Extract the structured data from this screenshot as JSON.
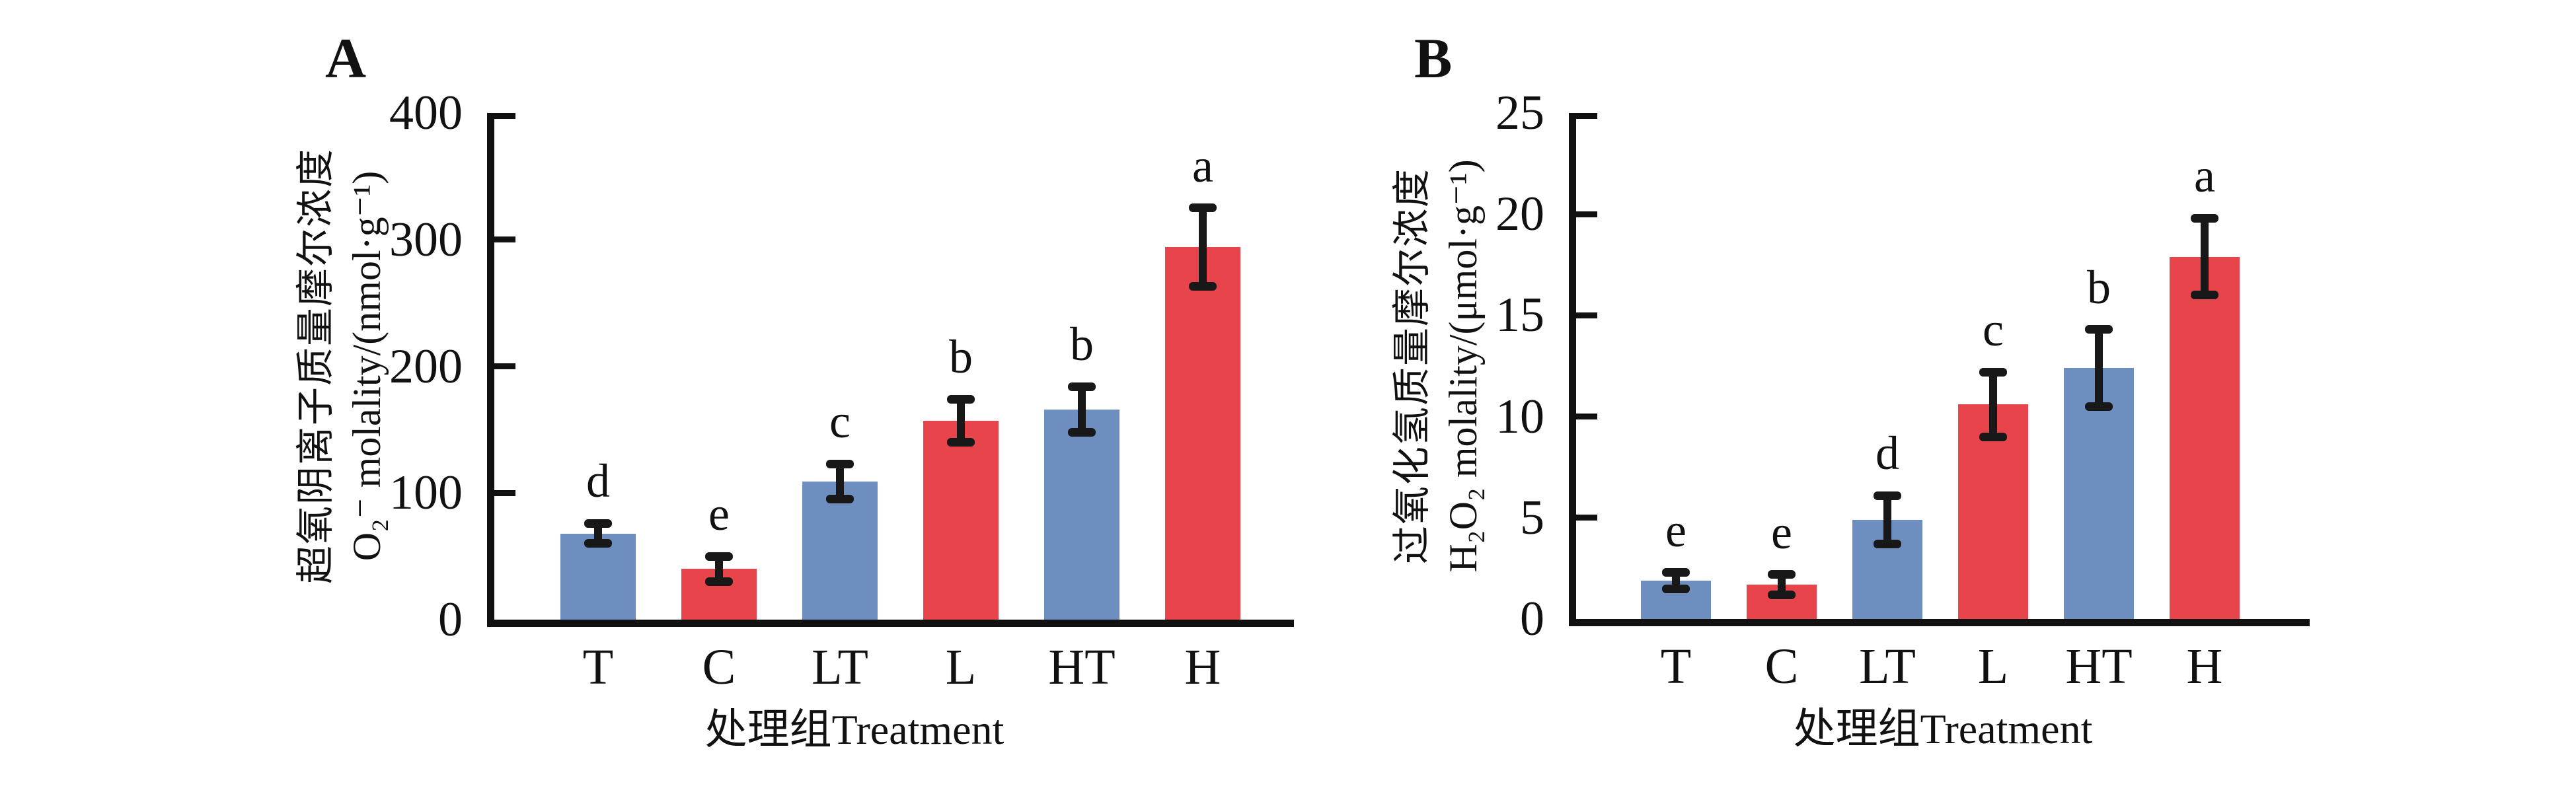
{
  "figure": {
    "background": "#ffffff",
    "axis_color": "#111111",
    "error_bar_color": "#181818",
    "bar_palette": {
      "blue": "#6E8EC0",
      "red": "#E8444B"
    },
    "panels": [
      {
        "label": "A",
        "y_label_cn": "超氧阴离子质量摩尔浓度",
        "y_label_en": "O₂⁻ molality/(nmol·g⁻¹)",
        "x_label": "处理组Treatment"
      },
      {
        "label": "B",
        "y_label_cn": "过氧化氢质量摩尔浓度",
        "y_label_en": "H₂O₂ molality/(μmol·g⁻¹)",
        "x_label": "处理组Treatment"
      }
    ]
  },
  "chart_data": [
    {
      "type": "bar",
      "panel": "A",
      "title": "超氧阴离子质量摩尔浓度 O₂⁻ molality/(nmol·g⁻¹)",
      "xlabel": "处理组Treatment",
      "ylabel": "O₂⁻ molality/(nmol·g⁻¹)",
      "categories": [
        "T",
        "C",
        "LT",
        "L",
        "HT",
        "H"
      ],
      "values": [
        68,
        40,
        109,
        157,
        166,
        294
      ],
      "errors": [
        8,
        10,
        14,
        17,
        18,
        31
      ],
      "sig_letters": [
        "d",
        "e",
        "c",
        "b",
        "b",
        "a"
      ],
      "bar_colors": [
        "#6E8EC0",
        "#E8444B",
        "#6E8EC0",
        "#E8444B",
        "#6E8EC0",
        "#E8444B"
      ],
      "ylim": [
        0,
        400
      ],
      "yticks": [
        0,
        100,
        200,
        300,
        400
      ],
      "grid": false,
      "legend": null
    },
    {
      "type": "bar",
      "panel": "B",
      "title": "过氧化氢质量摩尔浓度 H₂O₂ molality/(μmol·g⁻¹)",
      "xlabel": "处理组Treatment",
      "ylabel": "H₂O₂ molality/(μmol·g⁻¹)",
      "categories": [
        "T",
        "C",
        "LT",
        "L",
        "HT",
        "H"
      ],
      "values": [
        1.9,
        1.7,
        4.9,
        10.6,
        12.4,
        17.9
      ],
      "errors": [
        0.4,
        0.5,
        1.2,
        1.6,
        1.9,
        1.9
      ],
      "sig_letters": [
        "e",
        "e",
        "d",
        "c",
        "b",
        "a"
      ],
      "bar_colors": [
        "#6E8EC0",
        "#E8444B",
        "#6E8EC0",
        "#E8444B",
        "#6E8EC0",
        "#E8444B"
      ],
      "ylim": [
        0,
        25
      ],
      "yticks": [
        0,
        5,
        10,
        15,
        20,
        25
      ],
      "grid": false,
      "legend": null
    }
  ]
}
